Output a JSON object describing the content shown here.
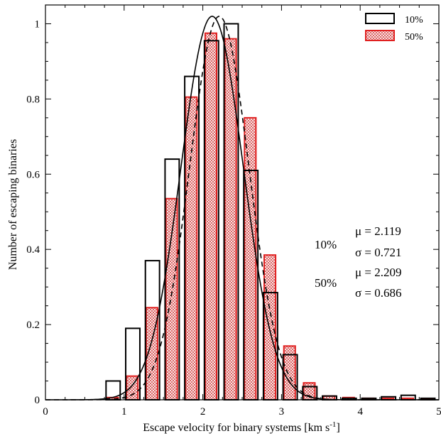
{
  "chart_data": {
    "type": "bar",
    "xlabel": "Escape velocity for binary systems [km s",
    "xlabel_sup": "-1",
    "xlabel_end": "]",
    "ylabel": "Number of escaping binaries",
    "xlim": [
      0,
      5
    ],
    "ylim": [
      0,
      1.05
    ],
    "xticks": [
      "0",
      "1",
      "2",
      "3",
      "4",
      "5"
    ],
    "yticks": [
      "0",
      "0.2",
      "0.4",
      "0.6",
      "0.8",
      "1"
    ],
    "bin_width": 0.25,
    "bin_starts": [
      0.75,
      1.0,
      1.25,
      1.5,
      1.75,
      2.0,
      2.25,
      2.5,
      2.75,
      3.0,
      3.25,
      3.5,
      3.75,
      4.0,
      4.25,
      4.5,
      4.75
    ],
    "legend_position": "top-right",
    "series": [
      {
        "name": "10%",
        "color": "#000000",
        "values": [
          0.05,
          0.19,
          0.37,
          0.64,
          0.86,
          0.955,
          1.0,
          0.61,
          0.285,
          0.12,
          0.035,
          0.01,
          0.004,
          0.004,
          0.008,
          0.012,
          0.004
        ]
      },
      {
        "name": "50%",
        "color": "#e02020",
        "fill": "crosshatch",
        "values": [
          0.006,
          0.063,
          0.245,
          0.535,
          0.805,
          0.975,
          0.96,
          0.75,
          0.385,
          0.143,
          0.045,
          0.01,
          0.006,
          0.004,
          0.004,
          0.004,
          0.002
        ]
      }
    ],
    "fits": [
      {
        "series": "10%",
        "style": "solid",
        "mu": 2.119,
        "sigma": 0.721
      },
      {
        "series": "50%",
        "style": "dashed",
        "mu": 2.209,
        "sigma": 0.686
      }
    ],
    "annotations": {
      "a_label": "10%",
      "a_mu": "μ = 2.119",
      "a_sigma": "σ = 0.721",
      "b_mu": "μ = 2.209",
      "b_label": "50%",
      "b_sigma": "σ = 0.686"
    }
  }
}
